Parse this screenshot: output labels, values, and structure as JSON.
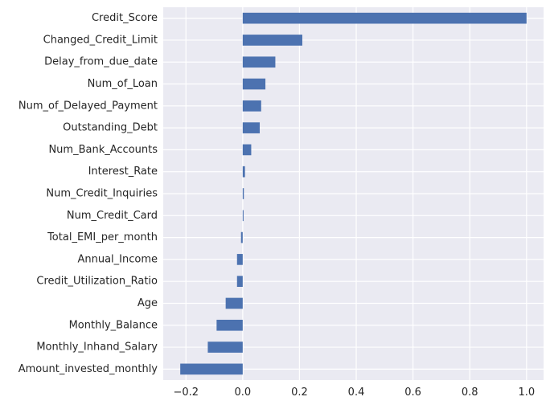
{
  "chart_data": {
    "type": "bar",
    "orientation": "horizontal",
    "title": "",
    "xlabel": "",
    "ylabel": "",
    "categories": [
      "Credit_Score",
      "Changed_Credit_Limit",
      "Delay_from_due_date",
      "Num_of_Loan",
      "Num_of_Delayed_Payment",
      "Outstanding_Debt",
      "Num_Bank_Accounts",
      "Interest_Rate",
      "Num_Credit_Inquiries",
      "Num_Credit_Card",
      "Total_EMI_per_month",
      "Annual_Income",
      "Credit_Utilization_Ratio",
      "Age",
      "Monthly_Balance",
      "Monthly_Inhand_Salary",
      "Amount_invested_monthly"
    ],
    "values": [
      1.0,
      0.21,
      0.115,
      0.08,
      0.065,
      0.06,
      0.03,
      0.008,
      0.004,
      0.003,
      -0.006,
      -0.02,
      -0.02,
      -0.06,
      -0.092,
      -0.123,
      -0.22
    ],
    "xlim": [
      -0.28,
      1.06
    ],
    "xticks": [
      -0.2,
      0.0,
      0.2,
      0.4,
      0.6,
      0.8,
      1.0
    ],
    "xtick_labels": [
      "−0.2",
      "0.0",
      "0.2",
      "0.4",
      "0.6",
      "0.8",
      "1.0"
    ],
    "grid": true,
    "legend": "none",
    "colors": {
      "bar": "#4c72b0",
      "plot_background": "#eaeaf2",
      "grid": "#ffffff",
      "text": "#262626"
    }
  }
}
